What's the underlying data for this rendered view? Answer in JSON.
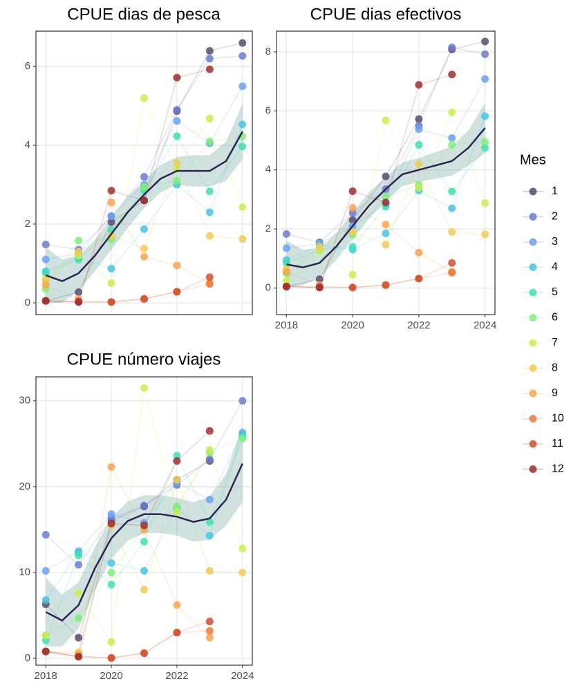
{
  "legend_title": "Mes",
  "chart_data": [
    {
      "type": "scatter-line",
      "title": "CPUE dias de pesca",
      "x": [
        2018,
        2019,
        2020,
        2021,
        2022,
        2023,
        2024
      ],
      "xlim": [
        2017.7,
        2024.3
      ],
      "xticks": [
        2018,
        2020,
        2022,
        2024
      ],
      "show_xtick_labels": false,
      "ylim": [
        -0.3,
        6.9
      ],
      "yticks": [
        0,
        2,
        4,
        6
      ],
      "grid": true,
      "series": [
        {
          "name": "1",
          "color": "#5b4b6e",
          "values": [
            0.05,
            0.27,
            2.05,
            2.6,
            4.87,
            6.4,
            6.6
          ]
        },
        {
          "name": "2",
          "color": "#6b7bd0",
          "values": [
            1.48,
            1.35,
            2.2,
            3.2,
            4.9,
            6.2,
            6.27
          ]
        },
        {
          "name": "3",
          "color": "#6aa2f2",
          "values": [
            1.1,
            1.25,
            2.2,
            3.0,
            4.62,
            4.05,
            5.5
          ]
        },
        {
          "name": "4",
          "color": "#45c6e0",
          "values": [
            0.8,
            1.15,
            0.87,
            1.87,
            3.0,
            2.3,
            4.53
          ]
        },
        {
          "name": "5",
          "color": "#3ee0ae",
          "values": [
            0.75,
            1.1,
            1.85,
            2.85,
            4.23,
            2.83,
            3.97
          ]
        },
        {
          "name": "6",
          "color": "#80f07a",
          "values": [
            0.35,
            1.58,
            1.6,
            2.95,
            3.1,
            4.1,
            4.23
          ]
        },
        {
          "name": "7",
          "color": "#c8ef4e",
          "values": [
            0.55,
            1.2,
            0.5,
            5.2,
            3.4,
            4.68,
            2.43
          ]
        },
        {
          "name": "8",
          "color": "#f2cb52",
          "values": [
            0.6,
            1.3,
            1.7,
            1.38,
            3.55,
            1.7,
            1.62
          ]
        },
        {
          "name": "9",
          "color": "#f9a54e",
          "values": [
            0.45,
            0.1,
            2.55,
            1.17,
            0.95,
            0.5,
            null
          ]
        },
        {
          "name": "10",
          "color": "#ef7840",
          "values": [
            0.05,
            0.05,
            0.02,
            0.1,
            0.28,
            0.48,
            null
          ]
        },
        {
          "name": "11",
          "color": "#d0502e",
          "values": [
            0.05,
            0.02,
            0.02,
            0.1,
            0.28,
            0.65,
            null
          ]
        },
        {
          "name": "12",
          "color": "#9e3030",
          "values": [
            0.05,
            0.02,
            2.85,
            2.6,
            5.72,
            5.93,
            null
          ]
        }
      ],
      "trend": {
        "color": "#2d2550",
        "band_color": "#5f9e98",
        "x": [
          2018,
          2018.5,
          2019,
          2019.5,
          2020,
          2020.5,
          2021,
          2021.5,
          2022,
          2022.5,
          2023,
          2023.5,
          2024
        ],
        "values": [
          0.7,
          0.55,
          0.75,
          1.2,
          1.75,
          2.3,
          2.75,
          3.15,
          3.35,
          3.35,
          3.35,
          3.6,
          4.35
        ],
        "lower": [
          0.0,
          0.0,
          0.3,
          0.8,
          1.35,
          1.9,
          2.4,
          2.8,
          3.0,
          2.95,
          2.95,
          3.1,
          3.65
        ],
        "upper": [
          1.4,
          1.1,
          1.2,
          1.6,
          2.15,
          2.7,
          3.1,
          3.5,
          3.7,
          3.75,
          3.75,
          4.1,
          5.05
        ]
      }
    },
    {
      "type": "scatter-line",
      "title": "CPUE dias efectivos",
      "x": [
        2018,
        2019,
        2020,
        2021,
        2022,
        2023,
        2024
      ],
      "xlim": [
        2017.7,
        2024.3
      ],
      "xticks": [
        2018,
        2020,
        2022,
        2024
      ],
      "show_xtick_labels": true,
      "ylim": [
        -0.9,
        8.7
      ],
      "yticks": [
        0,
        2,
        4,
        6,
        8
      ],
      "grid": true,
      "series": [
        {
          "name": "1",
          "color": "#5b4b6e",
          "values": [
            0.05,
            0.3,
            2.3,
            3.78,
            5.72,
            8.08,
            8.35
          ]
        },
        {
          "name": "2",
          "color": "#6b7bd0",
          "values": [
            1.83,
            1.55,
            2.55,
            3.35,
            5.5,
            8.15,
            7.92
          ]
        },
        {
          "name": "3",
          "color": "#6aa2f2",
          "values": [
            1.35,
            1.5,
            2.1,
            2.85,
            5.38,
            5.08,
            7.08
          ]
        },
        {
          "name": "4",
          "color": "#45c6e0",
          "values": [
            0.95,
            1.45,
            1.3,
            1.85,
            3.3,
            2.7,
            5.82
          ]
        },
        {
          "name": "5",
          "color": "#3ee0ae",
          "values": [
            0.85,
            1.3,
            1.4,
            2.75,
            4.85,
            3.27,
            4.75
          ]
        },
        {
          "name": "6",
          "color": "#80f07a",
          "values": [
            0.5,
            1.35,
            1.8,
            3.1,
            3.5,
            4.85,
            4.95
          ]
        },
        {
          "name": "7",
          "color": "#c8ef4e",
          "values": [
            0.25,
            1.25,
            0.45,
            5.68,
            3.4,
            5.95,
            2.88
          ]
        },
        {
          "name": "8",
          "color": "#f2cb52",
          "values": [
            0.65,
            1.4,
            1.9,
            1.47,
            4.2,
            1.9,
            1.82
          ]
        },
        {
          "name": "9",
          "color": "#f9a54e",
          "values": [
            0.55,
            0.1,
            2.72,
            2.15,
            1.2,
            0.55,
            null
          ]
        },
        {
          "name": "10",
          "color": "#ef7840",
          "values": [
            0.05,
            0.05,
            0.02,
            0.1,
            0.32,
            0.52,
            null
          ]
        },
        {
          "name": "11",
          "color": "#d0502e",
          "values": [
            0.05,
            0.02,
            0.02,
            0.1,
            0.32,
            0.85,
            null
          ]
        },
        {
          "name": "12",
          "color": "#9e3030",
          "values": [
            0.05,
            0.02,
            3.28,
            2.9,
            6.88,
            7.23,
            null
          ]
        }
      ],
      "trend": {
        "color": "#2d2550",
        "band_color": "#5f9e98",
        "x": [
          2018,
          2018.5,
          2019,
          2019.5,
          2020,
          2020.5,
          2021,
          2021.5,
          2022,
          2022.5,
          2023,
          2023.5,
          2024
        ],
        "values": [
          0.8,
          0.7,
          0.85,
          1.4,
          2.1,
          2.8,
          3.35,
          3.85,
          4.0,
          4.15,
          4.3,
          4.75,
          5.42
        ],
        "lower": [
          0.0,
          0.1,
          0.35,
          0.95,
          1.65,
          2.35,
          2.95,
          3.45,
          3.6,
          3.7,
          3.8,
          4.15,
          4.57
        ],
        "upper": [
          1.6,
          1.3,
          1.35,
          1.85,
          2.55,
          3.25,
          3.75,
          4.25,
          4.4,
          4.6,
          4.8,
          5.35,
          6.27
        ]
      }
    },
    {
      "type": "scatter-line",
      "title": "CPUE número viajes",
      "x": [
        2018,
        2019,
        2020,
        2021,
        2022,
        2023,
        2024
      ],
      "xlim": [
        2017.7,
        2024.3
      ],
      "xticks": [
        2018,
        2020,
        2022,
        2024
      ],
      "show_xtick_labels": true,
      "ylim": [
        -0.8,
        32.8
      ],
      "yticks": [
        0,
        10,
        20,
        30
      ],
      "grid": true,
      "series": [
        {
          "name": "1",
          "color": "#5b4b6e",
          "values": [
            6.3,
            2.4,
            16,
            17.7,
            20.8,
            23,
            null
          ]
        },
        {
          "name": "2",
          "color": "#6b7bd0",
          "values": [
            14.4,
            10.9,
            16.3,
            17.8,
            20.2,
            23.2,
            30
          ]
        },
        {
          "name": "3",
          "color": "#6aa2f2",
          "values": [
            10.2,
            12.5,
            16.8,
            15.8,
            20.5,
            18.5,
            26.3
          ]
        },
        {
          "name": "4",
          "color": "#45c6e0",
          "values": [
            6.8,
            12.3,
            11.1,
            10.2,
            17.5,
            14.3,
            26.1
          ]
        },
        {
          "name": "5",
          "color": "#3ee0ae",
          "values": [
            2.1,
            12,
            8.6,
            13.6,
            23.6,
            15.9,
            25.8
          ]
        },
        {
          "name": "6",
          "color": "#80f07a",
          "values": [
            2.7,
            4.7,
            10,
            15.3,
            17.7,
            24,
            25.6
          ]
        },
        {
          "name": "7",
          "color": "#c8ef4e",
          "values": [
            2.7,
            7.6,
            1.9,
            31.5,
            17.1,
            24.3,
            12.8
          ]
        },
        {
          "name": "8",
          "color": "#f2cb52",
          "values": [
            0.8,
            0.7,
            15.5,
            8,
            20.8,
            10.2,
            10
          ]
        },
        {
          "name": "9",
          "color": "#f9a54e",
          "values": [
            0.8,
            0.5,
            22.3,
            15,
            6.2,
            2.4,
            null
          ]
        },
        {
          "name": "10",
          "color": "#ef7840",
          "values": [
            0.8,
            0.2,
            0.05,
            0.6,
            3,
            3.2,
            null
          ]
        },
        {
          "name": "11",
          "color": "#d0502e",
          "values": [
            0.8,
            0.2,
            0.05,
            0.6,
            3,
            4.3,
            null
          ]
        },
        {
          "name": "12",
          "color": "#9e3030",
          "values": [
            0.8,
            0.2,
            15.7,
            15.5,
            23,
            26.5,
            null
          ]
        }
      ],
      "trend": {
        "color": "#2d2550",
        "band_color": "#5f9e98",
        "x": [
          2018,
          2018.5,
          2019,
          2019.5,
          2020,
          2020.5,
          2021,
          2021.5,
          2022,
          2022.5,
          2023,
          2023.5,
          2024
        ],
        "values": [
          5.4,
          4.4,
          6.2,
          10.5,
          14,
          16,
          16.8,
          16.8,
          16.5,
          15.9,
          16.3,
          18.5,
          22.7
        ],
        "lower": [
          1.4,
          1.4,
          3.5,
          8,
          11.6,
          13.7,
          14.6,
          14.6,
          14.3,
          13.6,
          13.8,
          15.5,
          18.2
        ],
        "upper": [
          9.4,
          7.4,
          8.9,
          13,
          16.4,
          18.3,
          19,
          19,
          18.7,
          18.2,
          18.8,
          21.5,
          27.2
        ]
      }
    }
  ]
}
